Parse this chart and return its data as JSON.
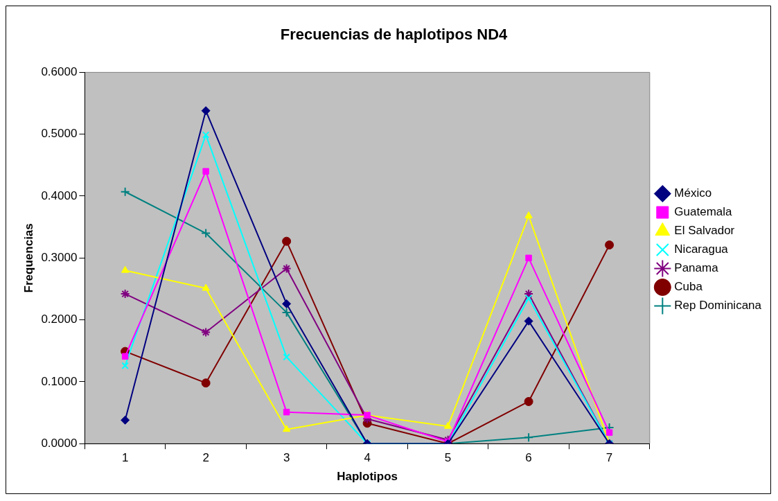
{
  "chart_data": {
    "type": "line",
    "title": "Frecuencias de haplotipos ND4",
    "xlabel": "Haplotipos",
    "ylabel": "Frequencias",
    "categories": [
      "1",
      "2",
      "3",
      "4",
      "5",
      "6",
      "7"
    ],
    "ylim": [
      0,
      0.6
    ],
    "yticks": [
      {
        "value": 0,
        "label": "0.0000"
      },
      {
        "value": 0.1,
        "label": "0.1000"
      },
      {
        "value": 0.2,
        "label": "0.2000"
      },
      {
        "value": 0.3,
        "label": "0.3000"
      },
      {
        "value": 0.4,
        "label": "0.4000"
      },
      {
        "value": 0.5,
        "label": "0.5000"
      },
      {
        "value": 0.6,
        "label": "0.6000"
      }
    ],
    "grid": false,
    "legend": "right",
    "line_style": "solid",
    "series": [
      {
        "name": "México",
        "color": "#000080",
        "marker": "diamond",
        "values": [
          0.038,
          0.538,
          0.226,
          0,
          0,
          0.198,
          0
        ]
      },
      {
        "name": "Guatemala",
        "color": "#ff00ff",
        "marker": "square",
        "values": [
          0.141,
          0.44,
          0.051,
          0.046,
          0.003,
          0.3,
          0.018
        ]
      },
      {
        "name": "El Salvador",
        "color": "#ffff00",
        "marker": "triangle",
        "values": [
          0.28,
          0.251,
          0.023,
          0.046,
          0.028,
          0.368,
          0
        ]
      },
      {
        "name": "Nicaragua",
        "color": "#00ffff",
        "marker": "cross",
        "values": [
          0.126,
          0.499,
          0.14,
          0,
          0,
          0.235,
          0
        ]
      },
      {
        "name": "Panama",
        "color": "#800080",
        "marker": "cross",
        "values": [
          0.242,
          0.18,
          0.283,
          0.04,
          0.006,
          0.242,
          0
        ]
      },
      {
        "name": "Cuba",
        "color": "#800000",
        "marker": "circle",
        "values": [
          0.149,
          0.098,
          0.327,
          0.033,
          0,
          0.068,
          0.321
        ]
      },
      {
        "name": "Rep Dominicana",
        "color": "#008080",
        "marker": "cross",
        "values": [
          0.407,
          0.34,
          0.212,
          0,
          0,
          0.01,
          0.026
        ]
      }
    ]
  }
}
